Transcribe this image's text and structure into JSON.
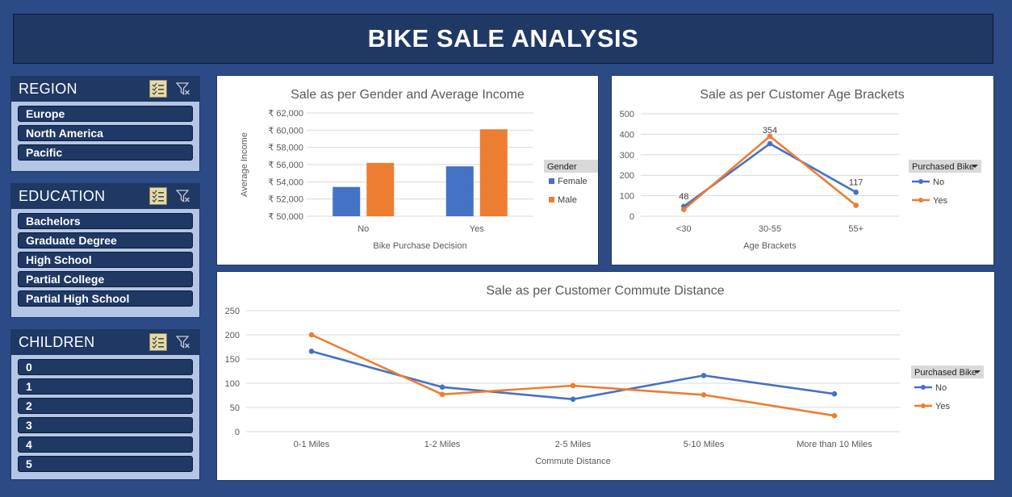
{
  "dashboard": {
    "title": "BIKE SALE ANALYSIS"
  },
  "slicers": {
    "region": {
      "title": "REGION",
      "items": [
        "Europe",
        "North America",
        "Pacific"
      ]
    },
    "education": {
      "title": "EDUCATION",
      "items": [
        "Bachelors",
        "Graduate Degree",
        "High School",
        "Partial College",
        "Partial High School"
      ]
    },
    "children": {
      "title": "CHILDREN",
      "items": [
        "0",
        "1",
        "2",
        "3",
        "4",
        "5"
      ]
    }
  },
  "colors": {
    "blue": "#4472c4",
    "orange": "#ed7d31",
    "navy": "#1f3864",
    "slicer_bg": "#b4c6e7",
    "page_bg": "#2c4a86"
  },
  "chart_data": [
    {
      "id": "gender",
      "type": "bar",
      "title": "Sale as per Gender and Average Income",
      "xlabel": "Bike  Purchase Decision",
      "ylabel": "Average Income",
      "categories": [
        "No",
        "Yes"
      ],
      "series": [
        {
          "name": "Female",
          "values": [
            53400,
            55800
          ],
          "color": "#4472c4"
        },
        {
          "name": "Male",
          "values": [
            56200,
            60100
          ],
          "color": "#ed7d31"
        }
      ],
      "ylim": [
        50000,
        62000
      ],
      "yticks": [
        50000,
        52000,
        54000,
        56000,
        58000,
        60000,
        62000
      ],
      "ytick_labels": [
        "₹ 50,000",
        "₹ 52,000",
        "₹ 54,000",
        "₹ 56,000",
        "₹ 58,000",
        "₹ 60,000",
        "₹ 62,000"
      ],
      "legend_title": "Gender",
      "legend_placement": "right",
      "grid": true
    },
    {
      "id": "age",
      "type": "line",
      "title": "Sale as per Customer Age Brackets",
      "xlabel": "Age Brackets",
      "ylabel": "",
      "categories": [
        "<30",
        "30-55",
        "55+"
      ],
      "series": [
        {
          "name": "No",
          "values": [
            48,
            354,
            117
          ],
          "color": "#4472c4",
          "labels": [
            "48",
            "354",
            "117"
          ]
        },
        {
          "name": "Yes",
          "values": [
            33,
            390,
            53
          ],
          "color": "#ed7d31"
        }
      ],
      "ylim": [
        0,
        500
      ],
      "yticks": [
        0,
        100,
        200,
        300,
        400,
        500
      ],
      "ytick_labels": [
        "0",
        "100",
        "200",
        "300",
        "400",
        "500"
      ],
      "legend_title": "Purchased Bike",
      "legend_placement": "right",
      "grid": true
    },
    {
      "id": "commute",
      "type": "line",
      "title": "Sale as per Customer Commute Distance",
      "xlabel": "Commute Distance",
      "ylabel": "",
      "categories": [
        "0-1 Miles",
        "1-2 Miles",
        "2-5 Miles",
        "5-10 Miles",
        "More than 10 Miles"
      ],
      "series": [
        {
          "name": "No",
          "values": [
            166,
            92,
            67,
            116,
            78
          ],
          "color": "#4472c4"
        },
        {
          "name": "Yes",
          "values": [
            200,
            77,
            95,
            76,
            33
          ],
          "color": "#ed7d31"
        }
      ],
      "ylim": [
        0,
        250
      ],
      "yticks": [
        0,
        50,
        100,
        150,
        200,
        250
      ],
      "ytick_labels": [
        "0",
        "50",
        "100",
        "150",
        "200",
        "250"
      ],
      "legend_title": "Purchased Bike",
      "legend_placement": "right",
      "grid": true
    }
  ]
}
